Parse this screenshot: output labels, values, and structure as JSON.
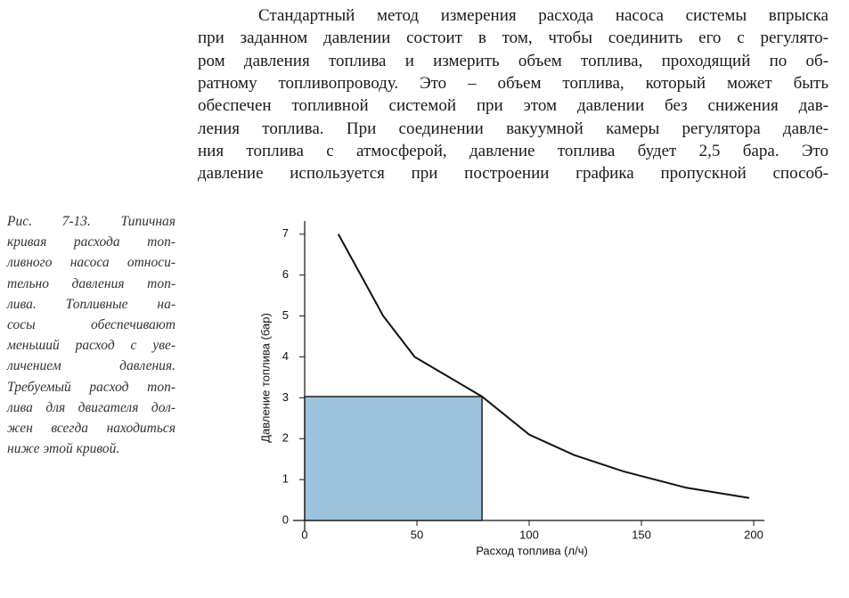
{
  "body_text": {
    "lines": [
      "Стандартный метод измерения расхода насоса системы впрыска",
      "при заданном давлении состоит в том, чтобы соединить его с регулято-",
      "ром давления топлива и измерить объем топлива, проходящий по об-",
      "ратному топливопроводу. Это – объем топлива, который может быть",
      "обеспечен топливной системой при этом давлении без снижения дав-",
      "ления топлива. При соединении вакуумной камеры регулятора давле-",
      "ния топлива с атмосферой, давление топлива будет 2,5 бара. Это",
      "давление используется при построении графика пропускной способ-"
    ]
  },
  "caption": {
    "lines": [
      "Рис. 7-13. Типичная",
      "кривая расхода топ-",
      "ливного насоса относи-",
      "тельно давления топ-",
      "лива. Топливные на-",
      "сосы обеспечивают",
      "меньший расход с уве-",
      "личением давления.",
      "Требуемый расход топ-",
      "лива для двигателя дол-",
      "жен всегда находиться",
      "ниже этой кривой."
    ]
  },
  "chart_data": {
    "type": "line",
    "x_label": "Расход топлива (л/ч)",
    "y_label": "Давление топлива (бар)",
    "x": [
      15,
      25,
      35,
      49,
      79,
      100,
      120,
      142,
      170,
      198
    ],
    "series": [
      {
        "color": "#111111",
        "values": [
          7,
          6,
          5,
          4,
          3.03,
          2.1,
          1.6,
          1.2,
          0.8,
          0.55
        ]
      }
    ],
    "highlight": {
      "x": 79,
      "y": 3.03,
      "color": "#9dc3dc"
    },
    "xlim": [
      -5,
      205
    ],
    "xticks": [
      0,
      50,
      100,
      150,
      200
    ],
    "ylim": [
      0,
      7.3
    ],
    "yticks": [
      0,
      1,
      2,
      3,
      4,
      5,
      6,
      7
    ]
  }
}
